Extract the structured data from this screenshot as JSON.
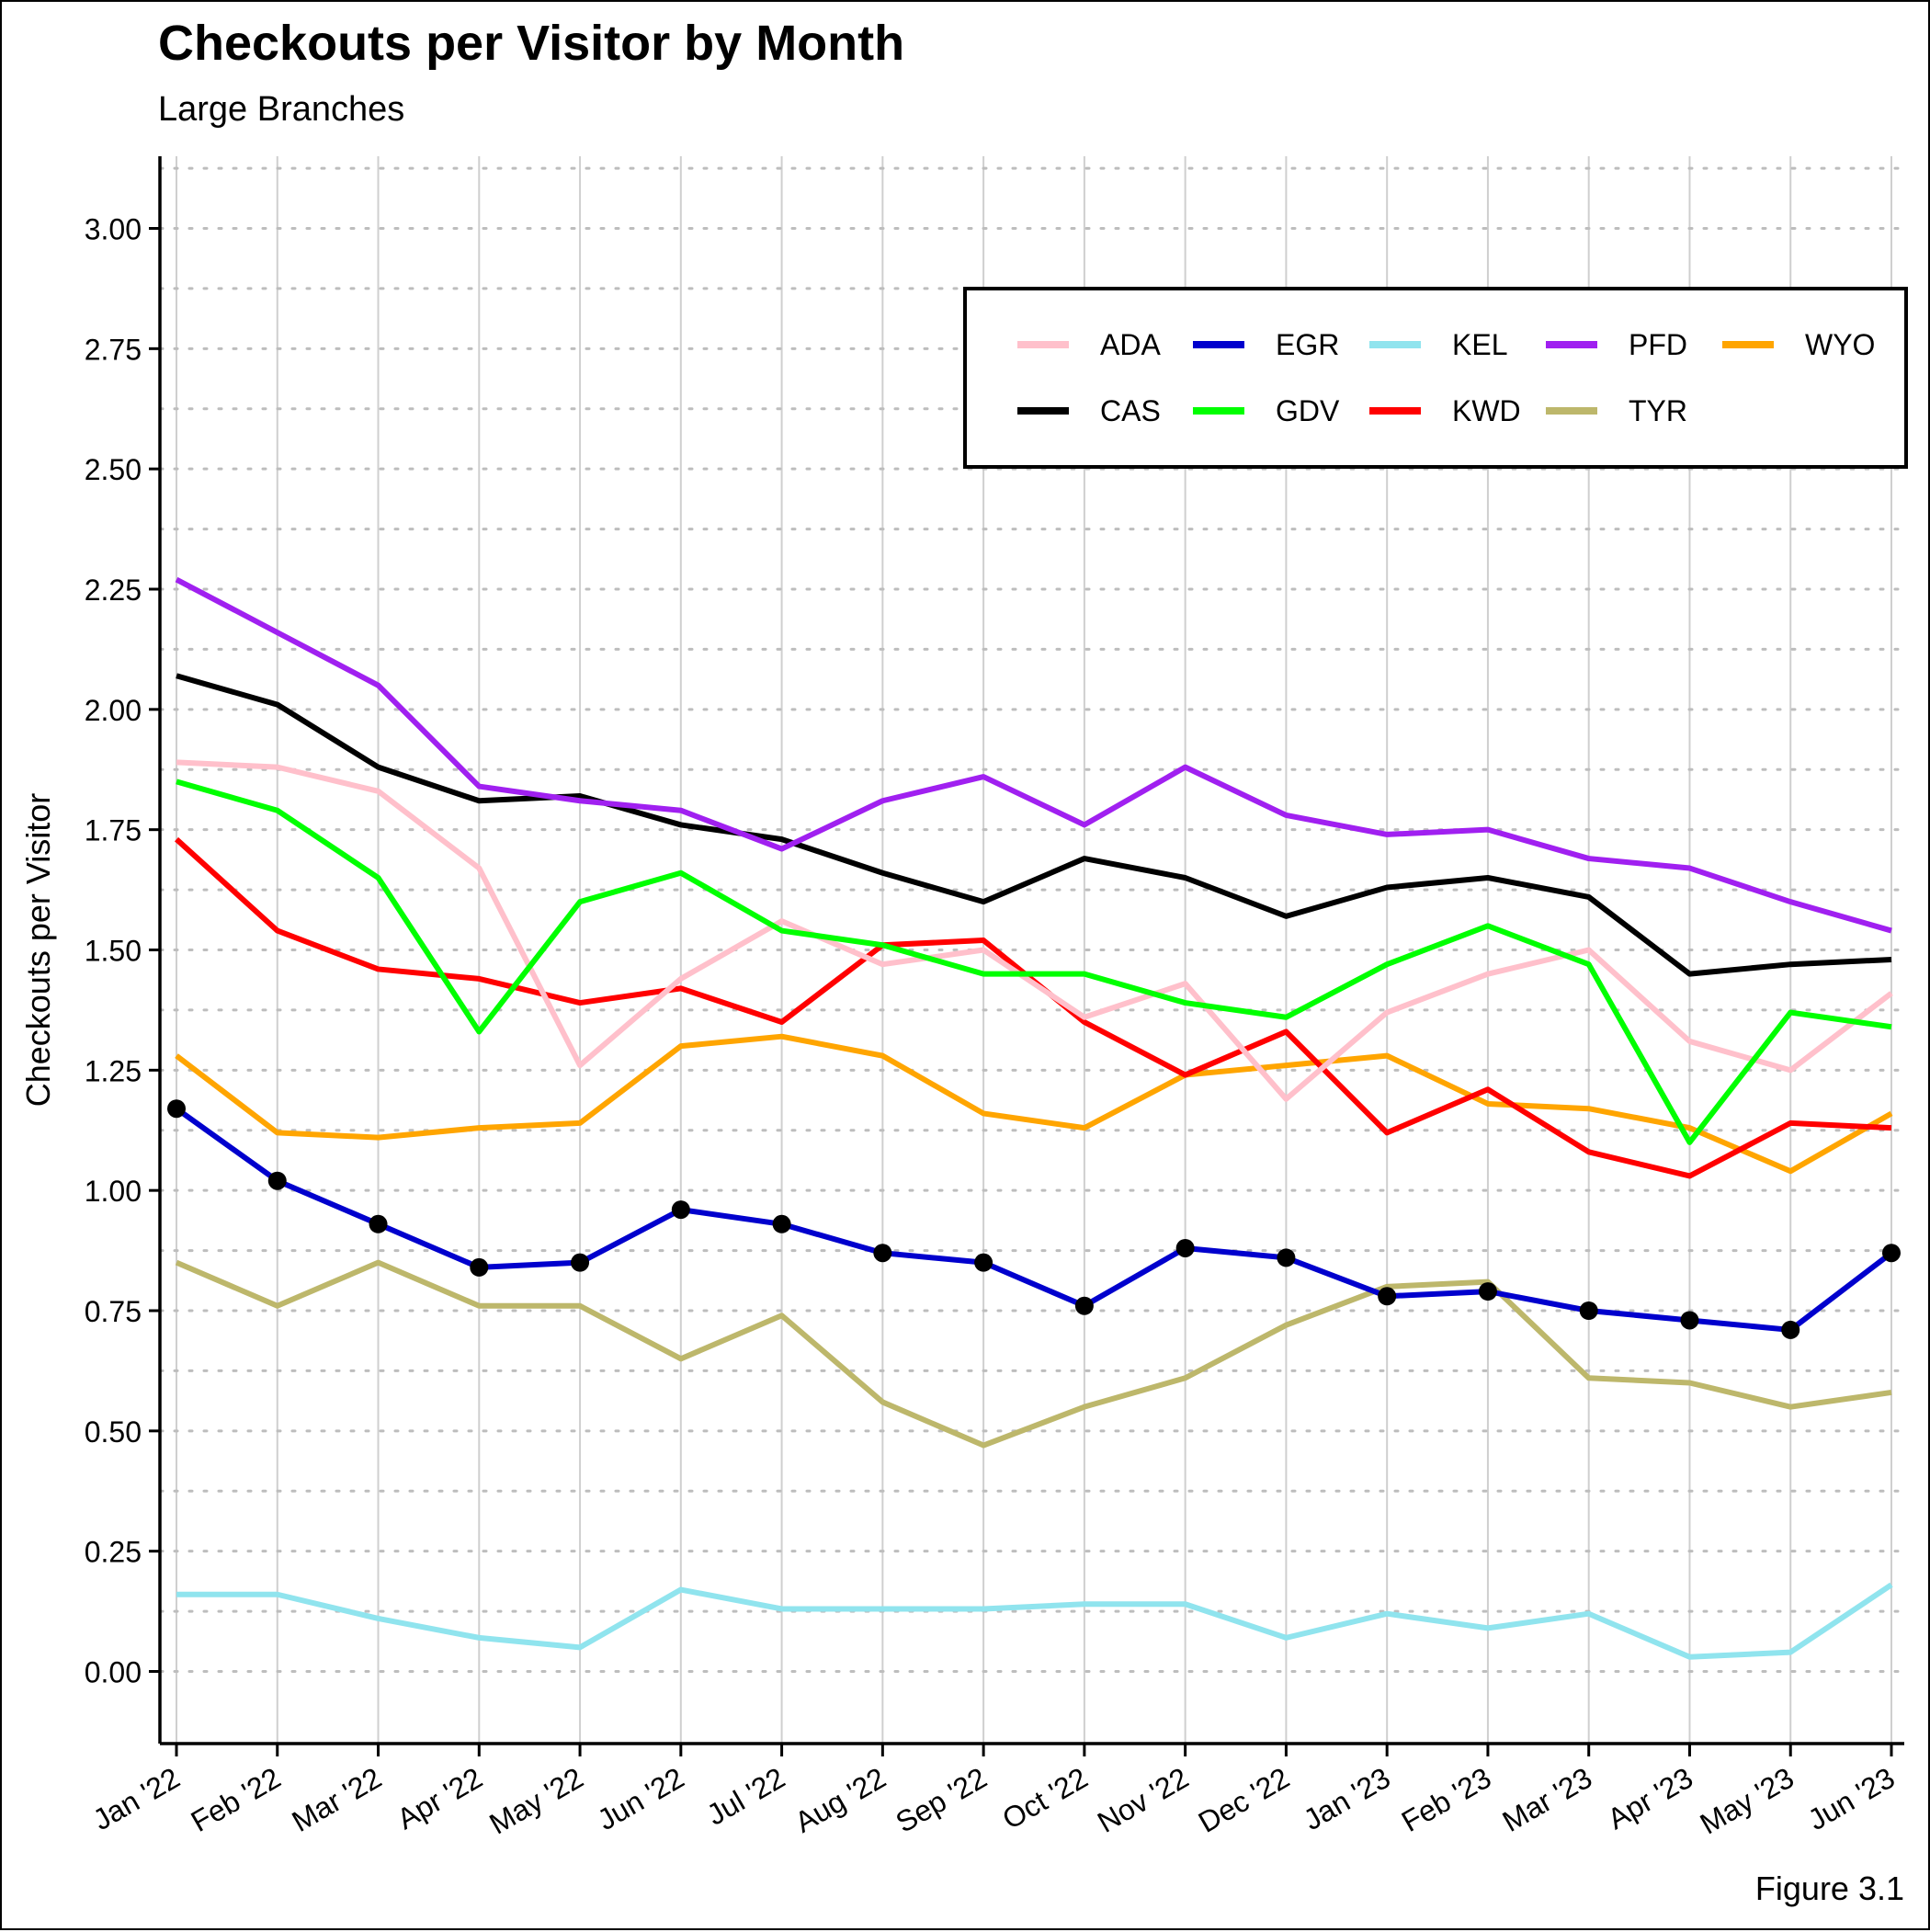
{
  "header": {
    "title": "Checkouts per Visitor by Month",
    "subtitle": "Large Branches"
  },
  "footer": {
    "caption": "Figure 3.1"
  },
  "chart_data": {
    "type": "line",
    "title": "Checkouts per Visitor by Month",
    "subtitle": "Large Branches",
    "xlabel": "",
    "ylabel": "Checkouts per Visitor",
    "ylim": [
      -0.15,
      3.15
    ],
    "yticks": [
      0.0,
      0.25,
      0.5,
      0.75,
      1.0,
      1.25,
      1.5,
      1.75,
      2.0,
      2.25,
      2.5,
      2.75,
      3.0
    ],
    "ytick_labels": [
      "0.00",
      "0.25",
      "0.50",
      "0.75",
      "1.00",
      "1.25",
      "1.50",
      "1.75",
      "2.00",
      "2.25",
      "2.50",
      "2.75",
      "3.00"
    ],
    "categories": [
      "Jan '22",
      "Feb '22",
      "Mar '22",
      "Apr '22",
      "May '22",
      "Jun '22",
      "Jul '22",
      "Aug '22",
      "Sep '22",
      "Oct '22",
      "Nov '22",
      "Dec '22",
      "Jan '23",
      "Feb '23",
      "Mar '23",
      "Apr '23",
      "May '23",
      "Jun '23"
    ],
    "grid": "vertical solid, horizontal dotted",
    "legend_position": "top-right",
    "series": [
      {
        "name": "ADA",
        "color": "#FFC0CB",
        "markers": false,
        "values": [
          1.89,
          1.88,
          1.83,
          1.67,
          1.26,
          1.44,
          1.56,
          1.47,
          1.5,
          1.36,
          1.43,
          1.19,
          1.37,
          1.45,
          1.5,
          1.31,
          1.25,
          1.41
        ]
      },
      {
        "name": "CAS",
        "color": "#000000",
        "markers": false,
        "values": [
          2.07,
          2.01,
          1.88,
          1.81,
          1.82,
          1.76,
          1.73,
          1.66,
          1.6,
          1.69,
          1.65,
          1.57,
          1.63,
          1.65,
          1.61,
          1.45,
          1.47,
          1.48
        ]
      },
      {
        "name": "EGR",
        "color": "#0000CD",
        "markers": true,
        "values": [
          1.17,
          1.02,
          0.93,
          0.84,
          0.85,
          0.96,
          0.93,
          0.87,
          0.85,
          0.76,
          0.88,
          0.86,
          0.78,
          0.79,
          0.75,
          0.73,
          0.71,
          0.87
        ]
      },
      {
        "name": "GDV",
        "color": "#00FF00",
        "markers": false,
        "values": [
          1.85,
          1.79,
          1.65,
          1.33,
          1.6,
          1.66,
          1.54,
          1.51,
          1.45,
          1.45,
          1.39,
          1.36,
          1.47,
          1.55,
          1.47,
          1.1,
          1.37,
          1.34
        ]
      },
      {
        "name": "KEL",
        "color": "#90E4EE",
        "markers": false,
        "values": [
          0.16,
          0.16,
          0.11,
          0.07,
          0.05,
          0.17,
          0.13,
          0.13,
          0.13,
          0.14,
          0.14,
          0.07,
          0.12,
          0.09,
          0.12,
          0.03,
          0.04,
          0.18
        ]
      },
      {
        "name": "KWD",
        "color": "#FF0000",
        "markers": false,
        "values": [
          1.73,
          1.54,
          1.46,
          1.44,
          1.39,
          1.42,
          1.35,
          1.51,
          1.52,
          1.35,
          1.24,
          1.33,
          1.12,
          1.21,
          1.08,
          1.03,
          1.14,
          1.13
        ]
      },
      {
        "name": "PFD",
        "color": "#A020F0",
        "markers": false,
        "values": [
          2.27,
          2.16,
          2.05,
          1.84,
          1.81,
          1.79,
          1.71,
          1.81,
          1.86,
          1.76,
          1.88,
          1.78,
          1.74,
          1.75,
          1.69,
          1.67,
          1.6,
          1.54
        ]
      },
      {
        "name": "TYR",
        "color": "#BDB76B",
        "markers": false,
        "values": [
          0.85,
          0.76,
          0.85,
          0.76,
          0.76,
          0.65,
          0.74,
          0.56,
          0.47,
          0.55,
          0.61,
          0.72,
          0.8,
          0.81,
          0.61,
          0.6,
          0.55,
          0.58
        ]
      },
      {
        "name": "WYO",
        "color": "#FFA500",
        "markers": false,
        "values": [
          1.28,
          1.12,
          1.11,
          1.13,
          1.14,
          1.3,
          1.32,
          1.28,
          1.16,
          1.13,
          1.24,
          1.26,
          1.28,
          1.18,
          1.17,
          1.13,
          1.04,
          1.16
        ]
      }
    ],
    "legend_rows": [
      [
        "ADA",
        "EGR",
        "KEL",
        "PFD",
        "WYO"
      ],
      [
        "CAS",
        "GDV",
        "KWD",
        "TYR"
      ]
    ],
    "draw_order": [
      "KEL",
      "TYR",
      "WYO",
      "KWD",
      "ADA",
      "GDV",
      "CAS",
      "PFD",
      "EGR"
    ]
  }
}
